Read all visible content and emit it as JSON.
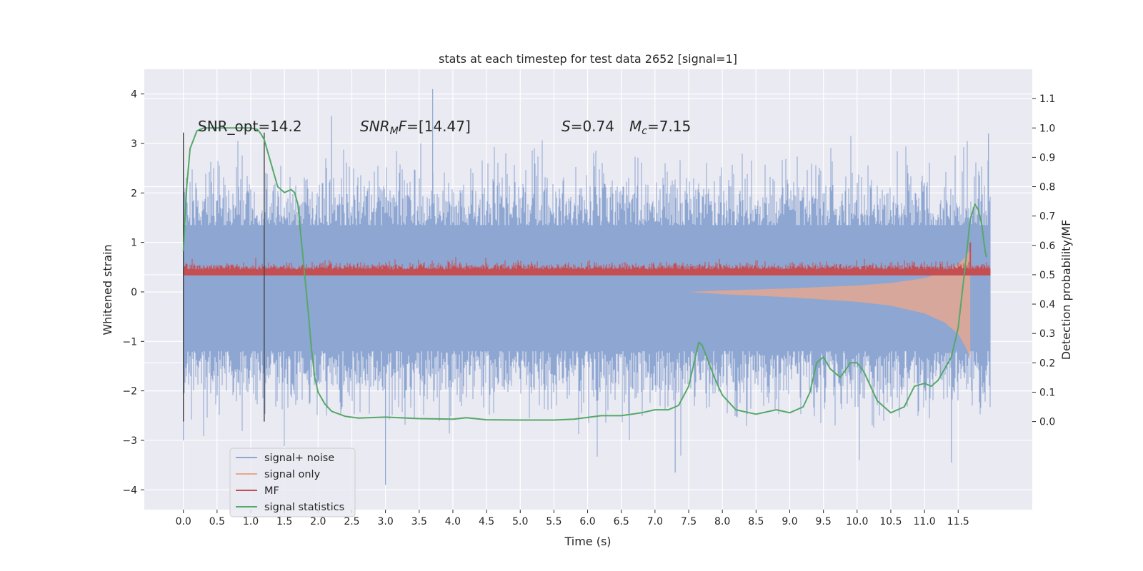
{
  "chart_data": {
    "type": "line",
    "title": "stats at each timestep for test data 2652 [signal=1]",
    "xlabel": "Time (s)",
    "ylabel": "Whitened strain",
    "y2label": "Detection probability/MF",
    "xlim": [
      -0.58,
      12.6
    ],
    "ylim": [
      -4.4,
      4.5
    ],
    "y2lim": [
      -0.3,
      1.2
    ],
    "grid": true,
    "legend_position": "lower-left",
    "xticks": [
      "0.0",
      "0.5",
      "1.0",
      "1.5",
      "2.0",
      "2.5",
      "3.0",
      "3.5",
      "4.0",
      "4.5",
      "5.0",
      "5.5",
      "6.0",
      "6.5",
      "7.0",
      "7.5",
      "8.0",
      "8.5",
      "9.0",
      "9.5",
      "10.0",
      "10.5",
      "11.0",
      "11.5"
    ],
    "yticks": [
      "4",
      "3",
      "2",
      "1",
      "0",
      "−1",
      "−2",
      "−3",
      "−4"
    ],
    "y2ticks": [
      "1.1",
      "1.0",
      "0.9",
      "0.8",
      "0.7",
      "0.6",
      "0.5",
      "0.4",
      "0.3",
      "0.2",
      "0.1",
      "0.0"
    ],
    "annotations": {
      "snr_opt": "SNR_opt=14.2",
      "snr_mf_sym": "SNR",
      "snr_mf_sub": "M",
      "snr_mf_sym2": "F",
      "snr_mf_val": "=[14.47]",
      "s_sym": "S",
      "s_val": "=0.74",
      "mc_sym": "M",
      "mc_sub": "c",
      "mc_val": "=7.15"
    },
    "colors": {
      "signal_noise": "#8ea6d2",
      "signal_only": "#e8a88c",
      "mf": "#c44e52",
      "signal_statistics": "#55a868",
      "vline": "#444444",
      "plot_bg": "#eaeaf2"
    },
    "vlines_x": [
      0.0,
      1.2
    ],
    "series": [
      {
        "name": "signal+ noise",
        "type": "noise_band",
        "x_range": [
          0.0,
          11.98
        ],
        "envelope_1sigma": [
          -1.2,
          1.35
        ],
        "peak_max": 4.1,
        "peak_min": -3.9
      },
      {
        "name": "signal only",
        "type": "chirp_envelope",
        "points": [
          [
            7.5,
            0.0
          ],
          [
            8.0,
            0.03
          ],
          [
            8.5,
            0.05
          ],
          [
            9.0,
            0.07
          ],
          [
            9.5,
            0.1
          ],
          [
            10.0,
            0.13
          ],
          [
            10.5,
            0.18
          ],
          [
            11.0,
            0.28
          ],
          [
            11.3,
            0.4
          ],
          [
            11.5,
            0.55
          ],
          [
            11.6,
            0.7
          ],
          [
            11.68,
            0.85
          ]
        ]
      },
      {
        "name": "MF",
        "type": "line",
        "x_range": [
          0.0,
          11.98
        ],
        "base": 0.05,
        "spike": [
          11.68,
          1.0
        ]
      },
      {
        "name": "signal statistics",
        "type": "line",
        "points": [
          [
            0.0,
            0.58
          ],
          [
            0.05,
            0.8
          ],
          [
            0.1,
            0.93
          ],
          [
            0.2,
            0.99
          ],
          [
            0.3,
            1.0
          ],
          [
            0.5,
            1.0
          ],
          [
            0.8,
            1.0
          ],
          [
            1.0,
            1.0
          ],
          [
            1.1,
            0.995
          ],
          [
            1.15,
            0.98
          ],
          [
            1.2,
            0.96
          ],
          [
            1.25,
            0.92
          ],
          [
            1.3,
            0.88
          ],
          [
            1.35,
            0.84
          ],
          [
            1.4,
            0.8
          ],
          [
            1.5,
            0.78
          ],
          [
            1.6,
            0.79
          ],
          [
            1.65,
            0.78
          ],
          [
            1.7,
            0.74
          ],
          [
            1.75,
            0.62
          ],
          [
            1.8,
            0.5
          ],
          [
            1.85,
            0.38
          ],
          [
            1.9,
            0.25
          ],
          [
            1.95,
            0.15
          ],
          [
            2.0,
            0.1
          ],
          [
            2.1,
            0.06
          ],
          [
            2.2,
            0.035
          ],
          [
            2.4,
            0.018
          ],
          [
            2.6,
            0.012
          ],
          [
            3.0,
            0.015
          ],
          [
            3.5,
            0.01
          ],
          [
            4.0,
            0.008
          ],
          [
            4.2,
            0.013
          ],
          [
            4.5,
            0.006
          ],
          [
            5.0,
            0.005
          ],
          [
            5.5,
            0.005
          ],
          [
            5.8,
            0.008
          ],
          [
            6.2,
            0.02
          ],
          [
            6.5,
            0.02
          ],
          [
            6.8,
            0.03
          ],
          [
            7.0,
            0.04
          ],
          [
            7.2,
            0.04
          ],
          [
            7.35,
            0.055
          ],
          [
            7.5,
            0.12
          ],
          [
            7.6,
            0.22
          ],
          [
            7.65,
            0.27
          ],
          [
            7.7,
            0.26
          ],
          [
            7.8,
            0.2
          ],
          [
            7.9,
            0.14
          ],
          [
            8.0,
            0.09
          ],
          [
            8.2,
            0.04
          ],
          [
            8.5,
            0.025
          ],
          [
            8.8,
            0.04
          ],
          [
            9.0,
            0.03
          ],
          [
            9.2,
            0.05
          ],
          [
            9.3,
            0.1
          ],
          [
            9.4,
            0.2
          ],
          [
            9.5,
            0.22
          ],
          [
            9.6,
            0.18
          ],
          [
            9.75,
            0.15
          ],
          [
            9.9,
            0.2
          ],
          [
            10.0,
            0.2
          ],
          [
            10.1,
            0.17
          ],
          [
            10.3,
            0.07
          ],
          [
            10.5,
            0.03
          ],
          [
            10.7,
            0.05
          ],
          [
            10.85,
            0.12
          ],
          [
            11.0,
            0.13
          ],
          [
            11.1,
            0.12
          ],
          [
            11.2,
            0.14
          ],
          [
            11.3,
            0.18
          ],
          [
            11.4,
            0.22
          ],
          [
            11.5,
            0.32
          ],
          [
            11.6,
            0.52
          ],
          [
            11.68,
            0.69
          ],
          [
            11.75,
            0.74
          ],
          [
            11.8,
            0.72
          ],
          [
            11.85,
            0.67
          ],
          [
            11.9,
            0.58
          ],
          [
            11.92,
            0.56
          ]
        ]
      }
    ]
  }
}
